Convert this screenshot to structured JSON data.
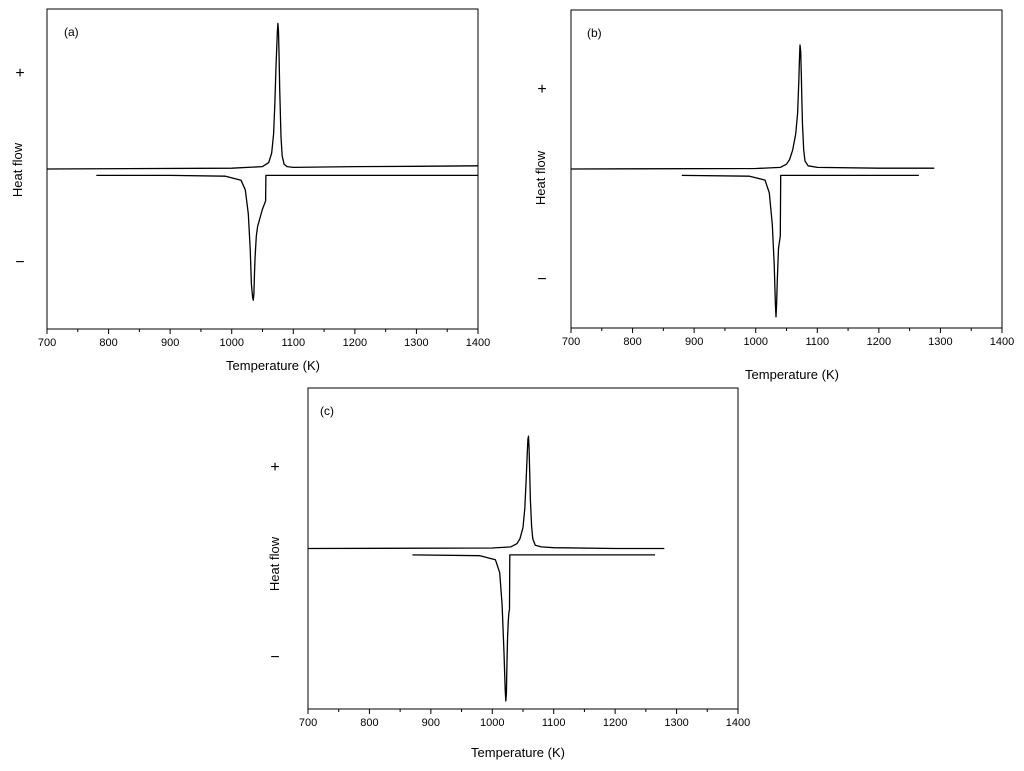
{
  "figure": {
    "panels": [
      {
        "label": "(a)",
        "xlabel": "Temperature (K)",
        "ylabel": "Heat flow",
        "plus": "+",
        "minus": "−"
      },
      {
        "label": "(b)",
        "xlabel": "Temperature (K)",
        "ylabel": "Heat flow",
        "plus": "+",
        "minus": "−"
      },
      {
        "label": "(c)",
        "xlabel": "Temperature (K)",
        "ylabel": "Heat flow",
        "plus": "+",
        "minus": "−"
      }
    ]
  },
  "chart_data": [
    {
      "type": "line",
      "title": "(a)",
      "xlabel": "Temperature (K)",
      "ylabel": "Heat flow",
      "xlim": [
        700,
        1400
      ],
      "ylim": [
        -1,
        1
      ],
      "xticks": [
        700,
        800,
        900,
        1000,
        1100,
        1200,
        1300,
        1400
      ],
      "y_tick_labels": [
        "+",
        "−"
      ],
      "grid": false,
      "series": [
        {
          "x": [
            700,
            1000,
            1050,
            1060,
            1065,
            1068,
            1070,
            1072,
            1074,
            1075,
            1076,
            1077,
            1078,
            1080,
            1082,
            1085,
            1090,
            1100,
            1200,
            1300,
            1400
          ],
          "y": [
            0,
            0.005,
            0.015,
            0.04,
            0.1,
            0.22,
            0.4,
            0.64,
            0.85,
            0.91,
            0.86,
            0.7,
            0.5,
            0.2,
            0.08,
            0.03,
            0.015,
            0.01,
            0.015,
            0.017,
            0.02
          ]
        },
        {
          "x": [
            780,
            900,
            990,
            1015,
            1022,
            1027,
            1030,
            1032,
            1034,
            1035,
            1036,
            1037,
            1038,
            1040,
            1042,
            1050,
            1055,
            1055.5,
            1100,
            1200,
            1300,
            1400
          ],
          "y": [
            -0.04,
            -0.04,
            -0.045,
            -0.07,
            -0.13,
            -0.28,
            -0.5,
            -0.72,
            -0.8,
            -0.82,
            -0.78,
            -0.65,
            -0.55,
            -0.42,
            -0.36,
            -0.25,
            -0.2,
            -0.04,
            -0.04,
            -0.04,
            -0.04,
            -0.04
          ]
        }
      ]
    },
    {
      "type": "line",
      "title": "(b)",
      "xlabel": "Temperature (K)",
      "ylabel": "Heat flow",
      "xlim": [
        700,
        1400
      ],
      "ylim": [
        -1,
        1
      ],
      "xticks": [
        700,
        800,
        900,
        1000,
        1100,
        1200,
        1300,
        1400
      ],
      "y_tick_labels": [
        "+",
        "−"
      ],
      "grid": false,
      "series": [
        {
          "x": [
            700,
            1000,
            1040,
            1050,
            1055,
            1060,
            1065,
            1068,
            1070,
            1071,
            1072,
            1073,
            1074,
            1075,
            1076,
            1078,
            1080,
            1085,
            1100,
            1200,
            1290
          ],
          "y": [
            0,
            0.003,
            0.01,
            0.03,
            0.06,
            0.12,
            0.22,
            0.35,
            0.55,
            0.68,
            0.78,
            0.74,
            0.6,
            0.42,
            0.28,
            0.12,
            0.05,
            0.02,
            0.01,
            0.005,
            0.005
          ]
        },
        {
          "x": [
            880,
            990,
            1015,
            1022,
            1027,
            1030,
            1032,
            1033,
            1034,
            1035,
            1037,
            1040,
            1040.5,
            1100,
            1200,
            1265
          ],
          "y": [
            -0.04,
            -0.045,
            -0.07,
            -0.15,
            -0.35,
            -0.6,
            -0.85,
            -0.93,
            -0.85,
            -0.7,
            -0.5,
            -0.42,
            -0.04,
            -0.04,
            -0.04,
            -0.04
          ]
        }
      ]
    },
    {
      "type": "line",
      "title": "(c)",
      "xlabel": "Temperature (K)",
      "ylabel": "Heat flow",
      "xlim": [
        700,
        1400
      ],
      "ylim": [
        -1,
        1
      ],
      "xticks": [
        700,
        800,
        900,
        1000,
        1100,
        1200,
        1300,
        1400
      ],
      "y_tick_labels": [
        "+",
        "−"
      ],
      "grid": false,
      "series": [
        {
          "x": [
            700,
            1000,
            1030,
            1040,
            1045,
            1050,
            1053,
            1055,
            1057,
            1058,
            1059,
            1060,
            1061,
            1062,
            1064,
            1066,
            1070,
            1080,
            1100,
            1200,
            1280
          ],
          "y": [
            0,
            0.003,
            0.01,
            0.03,
            0.06,
            0.13,
            0.25,
            0.42,
            0.6,
            0.68,
            0.7,
            0.62,
            0.45,
            0.3,
            0.14,
            0.06,
            0.02,
            0.01,
            0.005,
            0,
            0
          ]
        },
        {
          "x": [
            870,
            980,
            1005,
            1012,
            1016,
            1019,
            1021,
            1022,
            1023,
            1024,
            1025,
            1026,
            1027,
            1028,
            1028.5,
            1100,
            1200,
            1265
          ],
          "y": [
            -0.04,
            -0.045,
            -0.07,
            -0.15,
            -0.35,
            -0.65,
            -0.88,
            -0.95,
            -0.9,
            -0.7,
            -0.55,
            -0.45,
            -0.4,
            -0.38,
            -0.04,
            -0.04,
            -0.04,
            -0.04
          ]
        }
      ]
    }
  ]
}
